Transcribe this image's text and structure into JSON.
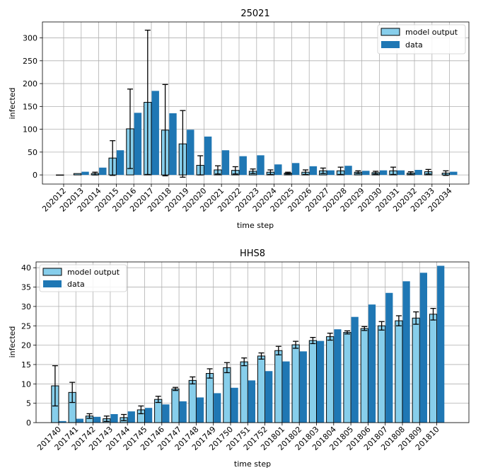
{
  "chart_data": [
    {
      "type": "bar",
      "title": "25021",
      "xlabel": "time step",
      "ylabel": "infected",
      "ylim": [
        -20,
        335
      ],
      "yticks": [
        0,
        50,
        100,
        150,
        200,
        250,
        300
      ],
      "legend_position": "top-right",
      "categories": [
        "202012",
        "202013",
        "202014",
        "202015",
        "202016",
        "202017",
        "202018",
        "202019",
        "202020",
        "202021",
        "202022",
        "202023",
        "202024",
        "202025",
        "202026",
        "202027",
        "202028",
        "202029",
        "202030",
        "202031",
        "202032",
        "202033",
        "202034"
      ],
      "series": [
        {
          "name": "model output",
          "color": "#87ceeb",
          "values": [
            0,
            3,
            3,
            37,
            101,
            159,
            98,
            68,
            21,
            11,
            10,
            8,
            6,
            4,
            6,
            9,
            9,
            6,
            5,
            9,
            4,
            7,
            4
          ],
          "err": [
            0,
            0,
            3,
            38,
            87,
            158,
            100,
            73,
            21,
            9,
            8,
            5,
            5,
            2,
            5,
            6,
            8,
            3,
            3,
            8,
            3,
            5,
            5
          ]
        },
        {
          "name": "data",
          "color": "#1f77b4",
          "values": [
            null,
            7,
            16,
            54,
            136,
            184,
            135,
            99,
            84,
            54,
            41,
            43,
            23,
            26,
            19,
            10,
            20,
            9,
            10,
            10,
            11,
            null,
            7
          ]
        }
      ]
    },
    {
      "type": "bar",
      "title": "HHS8",
      "xlabel": "time step",
      "ylabel": "infected",
      "ylim": [
        0,
        41.5
      ],
      "yticks": [
        0,
        5,
        10,
        15,
        20,
        25,
        30,
        35,
        40
      ],
      "legend_position": "top-left",
      "categories": [
        "201740",
        "201741",
        "201742",
        "201743",
        "201744",
        "201745",
        "201746",
        "201747",
        "201748",
        "201749",
        "201750",
        "201751",
        "201752",
        "201801",
        "201802",
        "201803",
        "201804",
        "201805",
        "201806",
        "201807",
        "201808",
        "201809",
        "201810"
      ],
      "series": [
        {
          "name": "model output",
          "color": "#87ceeb",
          "values": [
            9.5,
            7.8,
            1.7,
            1.0,
            1.3,
            3.3,
            6.0,
            8.7,
            10.9,
            12.7,
            14.2,
            15.7,
            17.2,
            18.6,
            20.1,
            21.2,
            22.2,
            23.3,
            24.3,
            25.0,
            26.3,
            27.0,
            28.0
          ],
          "err": [
            5.2,
            2.6,
            0.6,
            0.7,
            0.8,
            1.0,
            0.8,
            0.4,
            0.9,
            1.2,
            1.3,
            1.0,
            0.8,
            1.1,
            0.9,
            0.8,
            0.9,
            0.4,
            0.5,
            1.1,
            1.3,
            1.6,
            1.5
          ]
        },
        {
          "name": "data",
          "color": "#1f77b4",
          "values": [
            0.4,
            1.0,
            1.5,
            2.2,
            2.9,
            3.8,
            4.7,
            5.5,
            6.5,
            7.6,
            9.0,
            10.9,
            13.3,
            15.8,
            18.4,
            21.1,
            24.1,
            27.3,
            30.5,
            33.5,
            36.5,
            38.7,
            40.5
          ]
        }
      ]
    }
  ]
}
